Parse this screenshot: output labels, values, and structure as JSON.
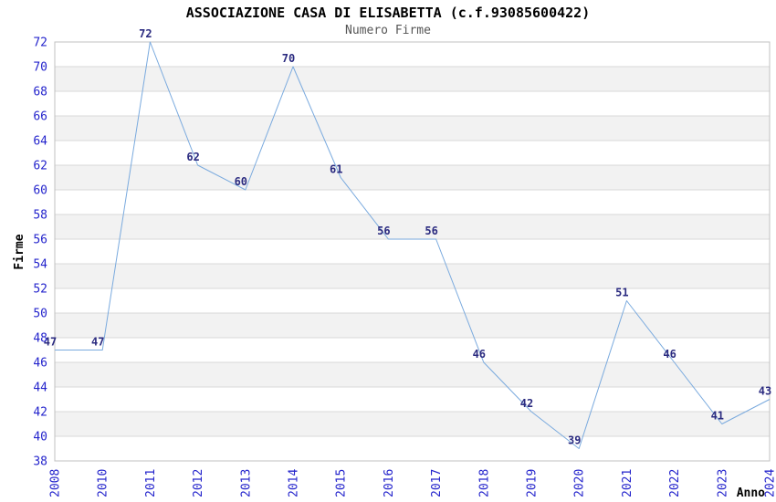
{
  "header": {
    "title": "ASSOCIAZIONE CASA DI ELISABETTA (c.f.93085600422)",
    "subtitle": "Numero Firme"
  },
  "chart_data": {
    "type": "line",
    "title": "ASSOCIAZIONE CASA DI ELISABETTA (c.f.93085600422)",
    "subtitle": "Numero Firme",
    "categories": [
      "2008",
      "2010",
      "2011",
      "2012",
      "2013",
      "2014",
      "2015",
      "2016",
      "2017",
      "2018",
      "2019",
      "2020",
      "2021",
      "2022",
      "2023",
      "2024"
    ],
    "values": [
      47,
      47,
      72,
      62,
      60,
      70,
      61,
      56,
      56,
      46,
      42,
      39,
      51,
      46,
      41,
      43
    ],
    "value_labels": [
      "47",
      "47",
      "72",
      "62",
      "60",
      "70",
      "61",
      "56",
      "56",
      "46",
      "42",
      "39",
      "51",
      "46",
      "41",
      "43"
    ],
    "xlabel": "Anno",
    "ylabel": "Firme",
    "ylim": [
      38,
      72
    ],
    "ytick_step": 2,
    "ytick_labels": [
      "38",
      "40",
      "42",
      "44",
      "46",
      "48",
      "50",
      "52",
      "54",
      "56",
      "58",
      "60",
      "62",
      "64",
      "66",
      "68",
      "70",
      "72"
    ],
    "grid": "horizontal",
    "legend": "none",
    "band_fill_alternating": true,
    "colors": {
      "line": "#7aaade",
      "tick_label": "#2424cc",
      "value_label": "#2b2b80",
      "band_fill": "#f2f2f2",
      "grid_line": "#d8d8d8",
      "plot_border": "#c0c0c0",
      "title": "#000000",
      "subtitle": "#555555",
      "axis_label": "#000000",
      "background": "#ffffff"
    }
  }
}
